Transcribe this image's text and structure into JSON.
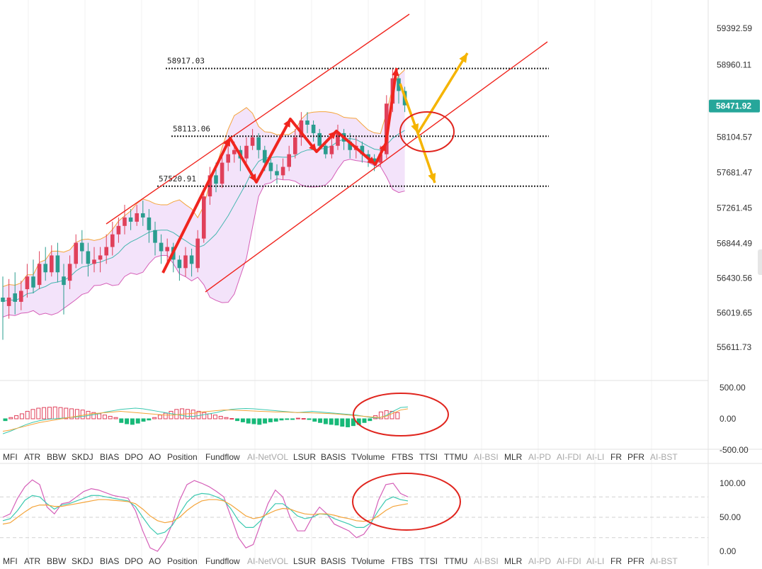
{
  "chart_data": [
    {
      "type": "candlestick",
      "panel": "main",
      "y_axis_ticks": [
        "59392.59",
        "58960.11",
        "58104.57",
        "57681.47",
        "57261.45",
        "56844.49",
        "56430.56",
        "56019.65",
        "55611.73"
      ],
      "ylim": [
        55400,
        59600
      ],
      "last_price": "58471.92",
      "levels": [
        {
          "label": "58917.03",
          "value": 58917.03
        },
        {
          "label": "58113.06",
          "value": 58113.06
        },
        {
          "label": "57520.91",
          "value": 57520.91
        }
      ],
      "candles": [
        [
          56200,
          56150,
          56450,
          55700
        ],
        [
          56100,
          56200,
          56420,
          55950
        ],
        [
          56250,
          56150,
          56500,
          56000
        ],
        [
          56150,
          56280,
          56400,
          56050
        ],
        [
          56300,
          56450,
          56600,
          56200
        ],
        [
          56450,
          56320,
          56650,
          56250
        ],
        [
          56350,
          56600,
          56750,
          56300
        ],
        [
          56600,
          56500,
          56800,
          56400
        ],
        [
          56500,
          56700,
          56820,
          56450
        ],
        [
          56700,
          56500,
          56850,
          56380
        ],
        [
          56450,
          56350,
          56600,
          56000
        ],
        [
          56400,
          56600,
          56700,
          56300
        ],
        [
          56600,
          56850,
          56950,
          56550
        ],
        [
          56850,
          56750,
          57000,
          56600
        ],
        [
          56750,
          56600,
          56850,
          56450
        ],
        [
          56600,
          56650,
          56800,
          56500
        ],
        [
          56650,
          56700,
          56800,
          56500
        ],
        [
          56700,
          56800,
          56950,
          56600
        ],
        [
          56800,
          56950,
          57100,
          56700
        ],
        [
          56950,
          57050,
          57150,
          56850
        ],
        [
          57050,
          57150,
          57300,
          56950
        ],
        [
          57150,
          57100,
          57250,
          57000
        ],
        [
          57100,
          57200,
          57300,
          57050
        ],
        [
          57200,
          57150,
          57350,
          57050
        ],
        [
          57150,
          57000,
          57250,
          56850
        ],
        [
          57000,
          56850,
          57100,
          56700
        ],
        [
          56850,
          56750,
          56950,
          56600
        ],
        [
          56750,
          56800,
          56900,
          56600
        ],
        [
          56800,
          56650,
          56850,
          56500
        ],
        [
          56650,
          56550,
          56700,
          56400
        ],
        [
          56550,
          56700,
          56800,
          56450
        ],
        [
          56700,
          56600,
          56780,
          56450
        ],
        [
          56550,
          56900,
          57000,
          56500
        ],
        [
          56900,
          57400,
          57500,
          56850
        ],
        [
          57400,
          57650,
          57750,
          57300
        ],
        [
          57650,
          57550,
          57800,
          57450
        ],
        [
          57550,
          57800,
          57900,
          57500
        ],
        [
          57800,
          57900,
          58000,
          57700
        ],
        [
          57900,
          57950,
          58050,
          57800
        ],
        [
          57950,
          57850,
          58000,
          57700
        ],
        [
          57850,
          58000,
          58100,
          57800
        ],
        [
          58000,
          58100,
          58200,
          57950
        ],
        [
          58100,
          57950,
          58150,
          57850
        ],
        [
          57950,
          57800,
          58000,
          57700
        ],
        [
          57800,
          57700,
          57850,
          57600
        ],
        [
          57700,
          57650,
          57780,
          57550
        ],
        [
          57650,
          57750,
          57850,
          57600
        ],
        [
          57750,
          57900,
          58000,
          57700
        ],
        [
          57900,
          58100,
          58200,
          57850
        ],
        [
          58100,
          58300,
          58400,
          58000
        ],
        [
          58300,
          58250,
          58400,
          58150
        ],
        [
          58250,
          58150,
          58300,
          58050
        ],
        [
          58150,
          58000,
          58200,
          57950
        ],
        [
          58000,
          57900,
          58050,
          57850
        ],
        [
          57900,
          58000,
          58100,
          57850
        ],
        [
          58000,
          58150,
          58250,
          57950
        ],
        [
          58150,
          58050,
          58200,
          57950
        ],
        [
          58050,
          57950,
          58150,
          57850
        ],
        [
          57950,
          58000,
          58100,
          57850
        ],
        [
          58000,
          57900,
          58050,
          57800
        ],
        [
          57900,
          57850,
          57950,
          57750
        ],
        [
          57850,
          57800,
          57900,
          57700
        ],
        [
          57800,
          57900,
          58000,
          57750
        ],
        [
          57900,
          58500,
          58600,
          57850
        ],
        [
          58500,
          58800,
          58917,
          58400
        ],
        [
          58800,
          58650,
          58850,
          58500
        ],
        [
          58650,
          58480,
          58700,
          58400
        ]
      ]
    },
    {
      "type": "bar",
      "panel": "oscillator-1",
      "y_axis_ticks": [
        "500.00",
        "0.00",
        "-500.00"
      ],
      "ylim": [
        -500,
        500
      ],
      "values": [
        -30,
        20,
        50,
        80,
        120,
        150,
        170,
        180,
        185,
        190,
        180,
        170,
        160,
        150,
        140,
        120,
        100,
        80,
        60,
        40,
        20,
        -60,
        -80,
        -90,
        -70,
        -40,
        -20,
        20,
        60,
        90,
        120,
        150,
        160,
        150,
        140,
        120,
        100,
        80,
        60,
        40,
        20,
        5,
        -30,
        -50,
        -70,
        -80,
        -90,
        -70,
        -50,
        -40,
        -20,
        -10,
        -5,
        10,
        5,
        -10,
        -40,
        -60,
        -80,
        -90,
        -100,
        -120,
        -130,
        -110,
        -90,
        -60,
        -30,
        50,
        110,
        130,
        120,
        100
      ],
      "line_a": [
        -240,
        -200,
        -150,
        -100,
        -60,
        -30,
        -10,
        0,
        10,
        20,
        30,
        40,
        60,
        80,
        110,
        130,
        150,
        160,
        170,
        160,
        140,
        120,
        100,
        80,
        60,
        40,
        40,
        60,
        80,
        100,
        130,
        150,
        160,
        165,
        160,
        150,
        140,
        130,
        120,
        110,
        100,
        110,
        120,
        110,
        100,
        90,
        80,
        70,
        60,
        40,
        20,
        10,
        50,
        120,
        180,
        190
      ],
      "line_b": [
        -200,
        -180,
        -150,
        -120,
        -90,
        -60,
        -40,
        -20,
        0,
        20,
        40,
        60,
        80,
        90,
        100,
        110,
        120,
        110,
        100,
        90,
        80,
        70,
        60,
        60,
        70,
        80,
        90,
        110,
        120,
        130,
        140,
        140,
        135,
        130,
        125,
        120,
        115,
        110,
        110,
        105,
        100,
        100,
        95,
        90,
        85,
        80,
        70,
        60,
        50,
        40,
        30,
        20,
        40,
        90,
        140,
        160
      ]
    },
    {
      "type": "line",
      "panel": "oscillator-2",
      "y_axis_ticks": [
        "100.00",
        "50.00",
        "0.00"
      ],
      "ylim": [
        0,
        100
      ],
      "series": [
        {
          "values": [
            50,
            55,
            78,
            95,
            105,
            98,
            65,
            55,
            70,
            72,
            80,
            88,
            92,
            90,
            86,
            82,
            80,
            78,
            60,
            30,
            5,
            0,
            15,
            40,
            75,
            98,
            104,
            100,
            95,
            88,
            80,
            50,
            20,
            5,
            10,
            40,
            70,
            90,
            80,
            50,
            30,
            30,
            50,
            65,
            55,
            40,
            35,
            30,
            20,
            25,
            40,
            75,
            98,
            100,
            85,
            80
          ]
        },
        {
          "values": [
            45,
            48,
            60,
            75,
            82,
            80,
            70,
            62,
            68,
            70,
            74,
            78,
            82,
            82,
            80,
            78,
            76,
            74,
            66,
            50,
            35,
            25,
            28,
            38,
            55,
            72,
            82,
            85,
            84,
            80,
            75,
            62,
            45,
            35,
            35,
            45,
            58,
            70,
            70,
            62,
            52,
            48,
            50,
            55,
            54,
            48,
            44,
            40,
            35,
            35,
            42,
            60,
            75,
            80,
            76,
            74
          ]
        },
        {
          "values": [
            40,
            42,
            50,
            58,
            65,
            68,
            68,
            66,
            66,
            68,
            70,
            72,
            74,
            76,
            76,
            75,
            74,
            73,
            70,
            62,
            52,
            45,
            42,
            44,
            50,
            60,
            68,
            74,
            76,
            76,
            74,
            68,
            60,
            52,
            48,
            50,
            55,
            60,
            63,
            62,
            58,
            55,
            54,
            55,
            55,
            53,
            50,
            48,
            45,
            44,
            46,
            52,
            60,
            66,
            68,
            70
          ]
        }
      ]
    }
  ],
  "indicator_tabs_top": [
    {
      "label": "MFI",
      "dim": false
    },
    {
      "label": "ATR",
      "dim": false
    },
    {
      "label": "BBW",
      "dim": false
    },
    {
      "label": "SKDJ",
      "dim": false
    },
    {
      "label": "BIAS",
      "dim": false
    },
    {
      "label": "DPO",
      "dim": false
    },
    {
      "label": "AO",
      "dim": false
    },
    {
      "label": "Position",
      "dim": false
    },
    {
      "label": "Fundflow",
      "dim": false
    },
    {
      "label": "AI-NetVOL",
      "dim": true
    },
    {
      "label": "LSUR",
      "dim": false
    },
    {
      "label": "BASIS",
      "dim": false
    },
    {
      "label": "TVolume",
      "dim": false
    },
    {
      "label": "FTBS",
      "dim": false
    },
    {
      "label": "TTSI",
      "dim": false
    },
    {
      "label": "TTMU",
      "dim": false
    },
    {
      "label": "AI-BSI",
      "dim": true
    },
    {
      "label": "MLR",
      "dim": false
    },
    {
      "label": "AI-PD",
      "dim": true
    },
    {
      "label": "AI-FDI",
      "dim": true
    },
    {
      "label": "AI-LI",
      "dim": true
    },
    {
      "label": "FR",
      "dim": false
    },
    {
      "label": "PFR",
      "dim": false
    },
    {
      "label": "AI-BST",
      "dim": true
    }
  ],
  "indicator_tabs_bottom": [
    {
      "label": "MFI",
      "dim": false
    },
    {
      "label": "ATR",
      "dim": false
    },
    {
      "label": "BBW",
      "dim": false
    },
    {
      "label": "SKDJ",
      "dim": false
    },
    {
      "label": "BIAS",
      "dim": false
    },
    {
      "label": "DPO",
      "dim": false
    },
    {
      "label": "AO",
      "dim": false
    },
    {
      "label": "Position",
      "dim": false
    },
    {
      "label": "Fundflow",
      "dim": false
    },
    {
      "label": "AI-NetVOL",
      "dim": true
    },
    {
      "label": "LSUR",
      "dim": false
    },
    {
      "label": "BASIS",
      "dim": false
    },
    {
      "label": "TVolume",
      "dim": false
    },
    {
      "label": "FTBS",
      "dim": false
    },
    {
      "label": "TTSI",
      "dim": false
    },
    {
      "label": "TTMU",
      "dim": false
    },
    {
      "label": "AI-BSI",
      "dim": true
    },
    {
      "label": "MLR",
      "dim": false
    },
    {
      "label": "AI-PD",
      "dim": true
    },
    {
      "label": "AI-FDI",
      "dim": true
    },
    {
      "label": "AI-LI",
      "dim": true
    },
    {
      "label": "FR",
      "dim": false
    },
    {
      "label": "PFR",
      "dim": false
    },
    {
      "label": "AI-BST",
      "dim": true
    }
  ],
  "colors": {
    "up": "#2a9d8f",
    "down": "#e0405a",
    "band_fill": "#f3e3fa",
    "band_upper": "#f4a43a",
    "band_lower": "#d55fb8",
    "band_mid": "#45b6b0",
    "annotation_red": "#f0251e",
    "annotation_yellow": "#f5b400",
    "price_tag": "#26a69a",
    "hist_pos": "#e0405a",
    "hist_neg": "#17b978"
  }
}
